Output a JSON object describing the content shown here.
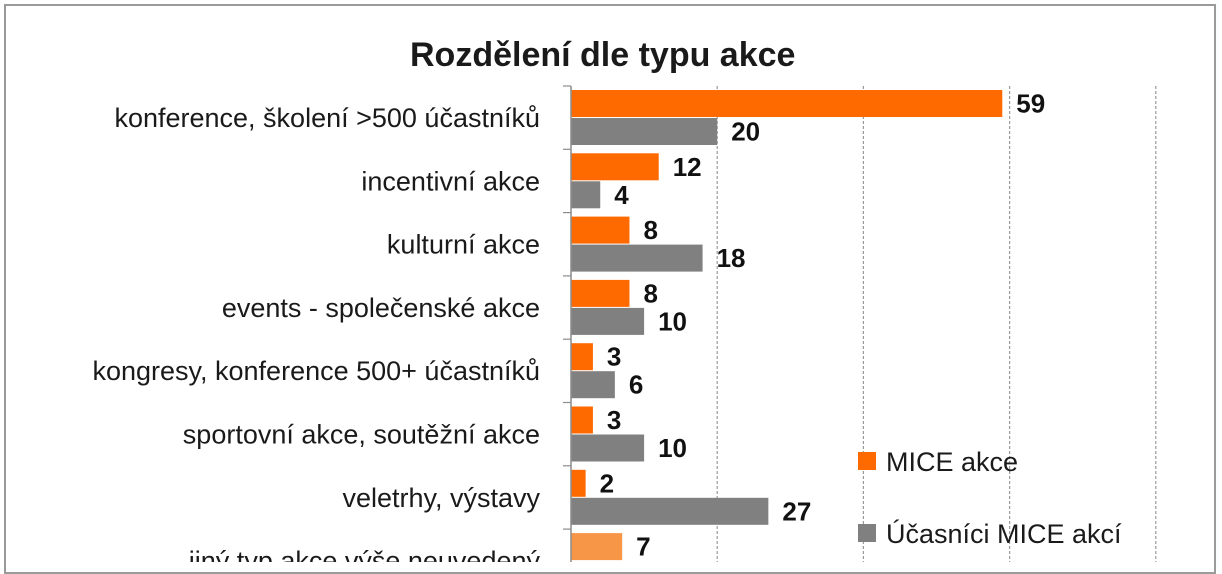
{
  "chart_data": {
    "type": "bar",
    "orientation": "horizontal",
    "title": "Rozdělení dle typu akce",
    "categories": [
      "konference, školení  >500 účastníků",
      "incentivní akce",
      "kulturní akce",
      "events - společenské akce",
      "kongresy, konference 500+ účastníků",
      "sportovní akce, soutěžní akce",
      "veletrhy, výstavy",
      "jiný typ akce výše neuvedený"
    ],
    "series": [
      {
        "name": "MICE akce",
        "color": "#ff6a00",
        "values": [
          59,
          12,
          8,
          8,
          3,
          3,
          2,
          7
        ]
      },
      {
        "name": "Účasníci MICE akcí",
        "color": "#808080",
        "values": [
          20,
          4,
          18,
          10,
          6,
          10,
          27,
          null
        ]
      }
    ],
    "xlim": [
      0,
      80
    ],
    "grid": true,
    "legend": "bottom-right"
  }
}
